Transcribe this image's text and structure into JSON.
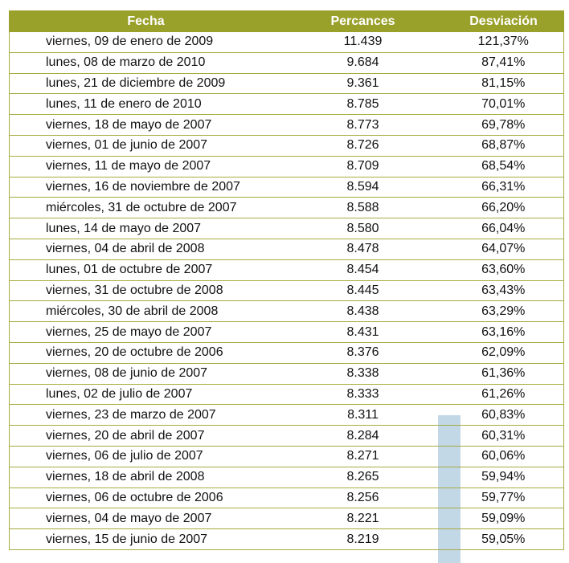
{
  "table": {
    "headers": [
      "Fecha",
      "Percances",
      "Desviación"
    ],
    "rows": [
      [
        "viernes, 09 de enero de 2009",
        "11.439",
        "121,37%"
      ],
      [
        "lunes, 08 de marzo de 2010",
        "9.684",
        "87,41%"
      ],
      [
        "lunes, 21 de diciembre de 2009",
        "9.361",
        "81,15%"
      ],
      [
        "lunes, 11 de enero de 2010",
        "8.785",
        "70,01%"
      ],
      [
        "viernes, 18 de mayo de 2007",
        "8.773",
        "69,78%"
      ],
      [
        "viernes, 01 de junio de 2007",
        "8.726",
        "68,87%"
      ],
      [
        "viernes, 11 de mayo de 2007",
        "8.709",
        "68,54%"
      ],
      [
        "viernes, 16 de noviembre de 2007",
        "8.594",
        "66,31%"
      ],
      [
        "miércoles, 31 de octubre de 2007",
        "8.588",
        "66,20%"
      ],
      [
        "lunes, 14 de mayo de 2007",
        "8.580",
        "66,04%"
      ],
      [
        "viernes, 04 de abril de 2008",
        "8.478",
        "64,07%"
      ],
      [
        "lunes, 01 de octubre de 2007",
        "8.454",
        "63,60%"
      ],
      [
        "viernes, 31 de octubre de 2008",
        "8.445",
        "63,43%"
      ],
      [
        "miércoles, 30 de abril de 2008",
        "8.438",
        "63,29%"
      ],
      [
        "viernes, 25 de mayo de 2007",
        "8.431",
        "63,16%"
      ],
      [
        "viernes, 20 de octubre de 2006",
        "8.376",
        "62,09%"
      ],
      [
        "viernes, 08 de junio de 2007",
        "8.338",
        "61,36%"
      ],
      [
        "lunes, 02 de julio de 2007",
        "8.333",
        "61,26%"
      ],
      [
        "viernes, 23 de marzo de 2007",
        "8.311",
        "60,83%"
      ],
      [
        "viernes, 20 de abril de 2007",
        "8.284",
        "60,31%"
      ],
      [
        "viernes, 06 de julio de 2007",
        "8.271",
        "60,06%"
      ],
      [
        "viernes, 18 de abril de 2008",
        "8.265",
        "59,94%"
      ],
      [
        "viernes, 06 de octubre de 2006",
        "8.256",
        "59,77%"
      ],
      [
        "viernes, 04 de mayo de 2007",
        "8.221",
        "59,09%"
      ],
      [
        "viernes, 15 de junio de 2007",
        "8.219",
        "59,05%"
      ]
    ]
  },
  "colors": {
    "header_bg": "#9aa12a",
    "border": "#a7ab40",
    "overlay_bar": "#c2d8e6"
  }
}
